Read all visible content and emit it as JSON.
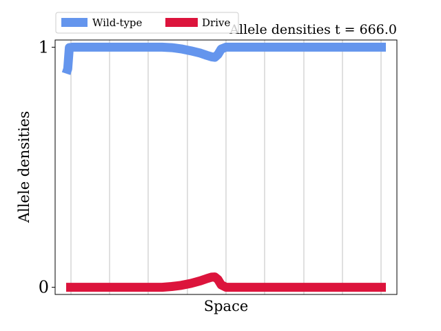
{
  "chart_data": {
    "type": "line",
    "title": "Allele densities t = 666.0",
    "xlabel": "Space",
    "ylabel": "Allele densities",
    "xlim": [
      0,
      1
    ],
    "ylim": [
      -0.03,
      1.03
    ],
    "yticks": [
      0,
      1
    ],
    "yticklabels": [
      "0",
      "1"
    ],
    "grid": "vertical",
    "legend_position": "top-left, above plot",
    "series": [
      {
        "name": "Wild-type",
        "color": "#6495ED",
        "x": [
          0.0,
          0.005,
          0.01,
          0.02,
          0.05,
          0.1,
          0.15,
          0.2,
          0.25,
          0.3,
          0.33,
          0.36,
          0.39,
          0.42,
          0.44,
          0.455,
          0.465,
          0.475,
          0.485,
          0.5,
          0.52,
          0.55,
          0.6,
          0.7,
          0.8,
          0.9,
          1.0
        ],
        "values": [
          0.89,
          0.91,
          0.998,
          1.0,
          1.0,
          1.0,
          1.0,
          1.0,
          1.0,
          1.0,
          0.998,
          0.993,
          0.985,
          0.975,
          0.966,
          0.96,
          0.958,
          0.97,
          0.992,
          1.0,
          1.0,
          1.0,
          1.0,
          1.0,
          1.0,
          1.0,
          1.0
        ]
      },
      {
        "name": "Drive",
        "color": "#DC143C",
        "x": [
          0.0,
          0.05,
          0.1,
          0.15,
          0.2,
          0.25,
          0.3,
          0.33,
          0.36,
          0.39,
          0.42,
          0.44,
          0.455,
          0.465,
          0.475,
          0.485,
          0.5,
          0.52,
          0.55,
          0.6,
          0.7,
          0.8,
          0.9,
          1.0
        ],
        "values": [
          0.0,
          0.0,
          0.0,
          0.0,
          0.0,
          0.0,
          0.0,
          0.003,
          0.008,
          0.016,
          0.027,
          0.036,
          0.042,
          0.043,
          0.032,
          0.01,
          0.0,
          0.0,
          0.0,
          0.0,
          0.0,
          0.0,
          0.0,
          0.0
        ]
      }
    ]
  }
}
